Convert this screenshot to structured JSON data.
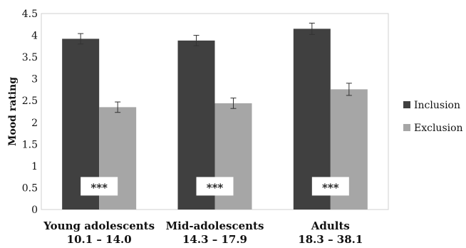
{
  "chart_data": {
    "type": "bar",
    "ylabel": "Mood rating",
    "ylim": [
      0,
      4.5
    ],
    "yticks": [
      "0",
      "0.5",
      "1",
      "1.5",
      "2",
      "2.5",
      "3",
      "3.5",
      "4",
      "4.5"
    ],
    "categories": [
      {
        "name": "Young adolescents",
        "range": "10.1 – 14.0"
      },
      {
        "name": "Mid-adolescents",
        "range": "14.3 – 17.9"
      },
      {
        "name": "Adults",
        "range": "18.3 – 38.1"
      }
    ],
    "series": [
      {
        "name": "Inclusion",
        "color": "#404040",
        "values": [
          3.92,
          3.88,
          4.15
        ],
        "errors": [
          0.12,
          0.12,
          0.13
        ]
      },
      {
        "name": "Exclusion",
        "color": "#a6a6a6",
        "values": [
          2.35,
          2.44,
          2.76
        ],
        "errors": [
          0.12,
          0.12,
          0.14
        ]
      }
    ],
    "significance": [
      "***",
      "***",
      "***"
    ],
    "legend_position": "right",
    "grid": false
  }
}
